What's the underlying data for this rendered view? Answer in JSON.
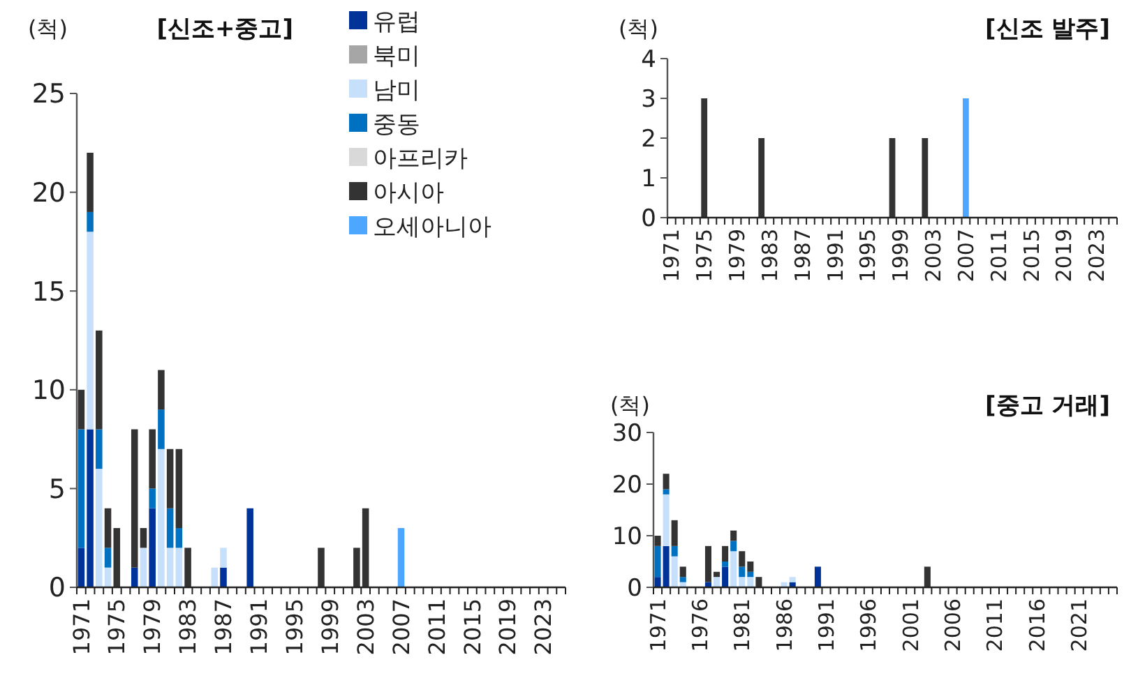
{
  "chart_data": [
    {
      "type": "bar",
      "title": "[신조+중고]",
      "ylabel": "(척)",
      "stacked": true,
      "legend": "top",
      "ylim": [
        0,
        25
      ],
      "yticks": [
        0,
        5,
        10,
        15,
        20,
        25
      ],
      "categories": [
        "1971",
        null,
        null,
        null,
        "1975",
        null,
        null,
        null,
        "1979",
        null,
        null,
        null,
        "1983",
        null,
        null,
        null,
        "1987",
        null,
        null,
        null,
        "1991",
        null,
        null,
        null,
        "1995",
        null,
        null,
        null,
        "1999",
        null,
        null,
        null,
        "2003",
        null,
        null,
        null,
        "2007",
        null,
        null,
        null,
        "2011",
        null,
        null,
        null,
        "2015",
        null,
        null,
        null,
        "2019",
        null,
        null,
        null,
        "2023",
        null,
        null
      ],
      "series": [
        {
          "name": "유럽",
          "color": "#003399",
          "values": [
            2,
            8,
            0,
            0,
            0,
            0,
            1,
            0,
            4,
            0,
            0,
            0,
            0,
            0,
            0,
            0,
            1,
            0,
            0,
            4,
            0,
            0,
            0,
            0,
            0,
            0,
            0,
            0,
            0,
            0,
            0,
            0,
            0,
            0,
            0,
            0,
            0,
            0,
            0,
            0,
            0,
            0,
            0,
            0,
            0,
            0,
            0,
            0,
            0,
            0,
            0,
            0,
            0,
            0,
            0
          ]
        },
        {
          "name": "북미",
          "color": "#a6a6a6",
          "values": [
            0,
            0,
            0,
            0,
            0,
            0,
            0,
            0,
            0,
            0,
            0,
            0,
            0,
            0,
            0,
            0,
            0,
            0,
            0,
            0,
            0,
            0,
            0,
            0,
            0,
            0,
            0,
            0,
            0,
            0,
            0,
            0,
            0,
            0,
            0,
            0,
            0,
            0,
            0,
            0,
            0,
            0,
            0,
            0,
            0,
            0,
            0,
            0,
            0,
            0,
            0,
            0,
            0,
            0,
            0
          ]
        },
        {
          "name": "남미",
          "color": "#c6e0fb",
          "values": [
            0,
            10,
            6,
            1,
            0,
            0,
            0,
            2,
            0,
            7,
            2,
            2,
            0,
            0,
            0,
            1,
            1,
            0,
            0,
            0,
            0,
            0,
            0,
            0,
            0,
            0,
            0,
            0,
            0,
            0,
            0,
            0,
            0,
            0,
            0,
            0,
            0,
            0,
            0,
            0,
            0,
            0,
            0,
            0,
            0,
            0,
            0,
            0,
            0,
            0,
            0,
            0,
            0,
            0,
            0
          ]
        },
        {
          "name": "중동",
          "color": "#0070c0",
          "values": [
            6,
            1,
            2,
            1,
            0,
            0,
            0,
            0,
            1,
            2,
            2,
            1,
            0,
            0,
            0,
            0,
            0,
            0,
            0,
            0,
            0,
            0,
            0,
            0,
            0,
            0,
            0,
            0,
            0,
            0,
            0,
            0,
            0,
            0,
            0,
            0,
            0,
            0,
            0,
            0,
            0,
            0,
            0,
            0,
            0,
            0,
            0,
            0,
            0,
            0,
            0,
            0,
            0,
            0,
            0
          ]
        },
        {
          "name": "아프리카",
          "color": "#d9d9d9",
          "values": [
            0,
            0,
            0,
            0,
            0,
            0,
            0,
            0,
            0,
            0,
            0,
            0,
            0,
            0,
            0,
            0,
            0,
            0,
            0,
            0,
            0,
            0,
            0,
            0,
            0,
            0,
            0,
            0,
            0,
            0,
            0,
            0,
            0,
            0,
            0,
            0,
            0,
            0,
            0,
            0,
            0,
            0,
            0,
            0,
            0,
            0,
            0,
            0,
            0,
            0,
            0,
            0,
            0,
            0,
            0
          ]
        },
        {
          "name": "아시아",
          "color": "#333333",
          "values": [
            2,
            3,
            5,
            2,
            3,
            0,
            7,
            1,
            3,
            2,
            3,
            4,
            2,
            0,
            0,
            0,
            0,
            0,
            0,
            0,
            0,
            0,
            0,
            0,
            0,
            0,
            0,
            2,
            0,
            0,
            0,
            2,
            4,
            0,
            0,
            0,
            0,
            0,
            0,
            0,
            0,
            0,
            0,
            0,
            0,
            0,
            0,
            0,
            0,
            0,
            0,
            0,
            0,
            0,
            0
          ]
        },
        {
          "name": "오세아니아",
          "color": "#4da6ff",
          "values": [
            0,
            0,
            0,
            0,
            0,
            0,
            0,
            0,
            0,
            0,
            0,
            0,
            0,
            0,
            0,
            0,
            0,
            0,
            0,
            0,
            0,
            0,
            0,
            0,
            0,
            0,
            0,
            0,
            0,
            0,
            0,
            0,
            0,
            0,
            0,
            0,
            3,
            0,
            0,
            0,
            0,
            0,
            0,
            0,
            0,
            0,
            0,
            0,
            0,
            0,
            0,
            0,
            0,
            0,
            0
          ]
        }
      ]
    },
    {
      "type": "bar",
      "title": "[신조 발주]",
      "ylabel": "(척)",
      "stacked": true,
      "ylim": [
        0,
        4
      ],
      "yticks": [
        0,
        1,
        2,
        3,
        4
      ],
      "categories": [
        "1971",
        null,
        null,
        null,
        "1975",
        null,
        null,
        null,
        "1979",
        null,
        null,
        null,
        "1983",
        null,
        null,
        null,
        "1987",
        null,
        null,
        null,
        "1991",
        null,
        null,
        null,
        "1995",
        null,
        null,
        null,
        "1999",
        null,
        null,
        null,
        "2003",
        null,
        null,
        null,
        "2007",
        null,
        null,
        null,
        "2011",
        null,
        null,
        null,
        "2015",
        null,
        null,
        null,
        "2019",
        null,
        null,
        null,
        "2023",
        null,
        null
      ],
      "series": [
        {
          "color": "#333333",
          "values": [
            0,
            0,
            0,
            0,
            3,
            0,
            0,
            0,
            0,
            0,
            0,
            2,
            0,
            0,
            0,
            0,
            0,
            0,
            0,
            0,
            0,
            0,
            0,
            0,
            0,
            0,
            0,
            2,
            0,
            0,
            0,
            2,
            0,
            0,
            0,
            0,
            0,
            0,
            0,
            0,
            0,
            0,
            0,
            0,
            0,
            0,
            0,
            0,
            0,
            0,
            0,
            0,
            0,
            0,
            0
          ]
        },
        {
          "color": "#4da6ff",
          "values": [
            0,
            0,
            0,
            0,
            0,
            0,
            0,
            0,
            0,
            0,
            0,
            0,
            0,
            0,
            0,
            0,
            0,
            0,
            0,
            0,
            0,
            0,
            0,
            0,
            0,
            0,
            0,
            0,
            0,
            0,
            0,
            0,
            0,
            0,
            0,
            0,
            3,
            0,
            0,
            0,
            0,
            0,
            0,
            0,
            0,
            0,
            0,
            0,
            0,
            0,
            0,
            0,
            0,
            0,
            0
          ]
        }
      ]
    },
    {
      "type": "bar",
      "title": "[중고 거래]",
      "ylabel": "(척)",
      "stacked": true,
      "ylim": [
        0,
        30
      ],
      "yticks": [
        0,
        10,
        20,
        30
      ],
      "categories": [
        "1971",
        null,
        null,
        null,
        null,
        "1976",
        null,
        null,
        null,
        null,
        "1981",
        null,
        null,
        null,
        null,
        "1986",
        null,
        null,
        null,
        null,
        "1991",
        null,
        null,
        null,
        null,
        "1996",
        null,
        null,
        null,
        null,
        "2001",
        null,
        null,
        null,
        null,
        "2006",
        null,
        null,
        null,
        null,
        "2011",
        null,
        null,
        null,
        null,
        "2016",
        null,
        null,
        null,
        null,
        "2021",
        null,
        null,
        null,
        null
      ],
      "series": [
        {
          "color": "#003399",
          "values": [
            2,
            8,
            0,
            0,
            0,
            0,
            1,
            0,
            4,
            0,
            0,
            0,
            0,
            0,
            0,
            0,
            1,
            0,
            0,
            4,
            0,
            0,
            0,
            0,
            0,
            0,
            0,
            0,
            0,
            0,
            0,
            0,
            0,
            0,
            0,
            0,
            0,
            0,
            0,
            0,
            0,
            0,
            0,
            0,
            0,
            0,
            0,
            0,
            0,
            0,
            0,
            0,
            0,
            0,
            0
          ]
        },
        {
          "color": "#c6e0fb",
          "values": [
            0,
            10,
            6,
            1,
            0,
            0,
            0,
            2,
            0,
            7,
            2,
            2,
            0,
            0,
            0,
            1,
            1,
            0,
            0,
            0,
            0,
            0,
            0,
            0,
            0,
            0,
            0,
            0,
            0,
            0,
            0,
            0,
            0,
            0,
            0,
            0,
            0,
            0,
            0,
            0,
            0,
            0,
            0,
            0,
            0,
            0,
            0,
            0,
            0,
            0,
            0,
            0,
            0,
            0,
            0
          ]
        },
        {
          "color": "#0070c0",
          "values": [
            6,
            1,
            2,
            1,
            0,
            0,
            0,
            0,
            1,
            2,
            2,
            1,
            0,
            0,
            0,
            0,
            0,
            0,
            0,
            0,
            0,
            0,
            0,
            0,
            0,
            0,
            0,
            0,
            0,
            0,
            0,
            0,
            0,
            0,
            0,
            0,
            0,
            0,
            0,
            0,
            0,
            0,
            0,
            0,
            0,
            0,
            0,
            0,
            0,
            0,
            0,
            0,
            0,
            0,
            0
          ]
        },
        {
          "color": "#333333",
          "values": [
            2,
            3,
            5,
            2,
            0,
            0,
            7,
            1,
            3,
            2,
            3,
            2,
            2,
            0,
            0,
            0,
            0,
            0,
            0,
            0,
            0,
            0,
            0,
            0,
            0,
            0,
            0,
            0,
            0,
            0,
            0,
            0,
            4,
            0,
            0,
            0,
            0,
            0,
            0,
            0,
            0,
            0,
            0,
            0,
            0,
            0,
            0,
            0,
            0,
            0,
            0,
            0,
            0,
            0,
            0
          ]
        }
      ]
    }
  ]
}
